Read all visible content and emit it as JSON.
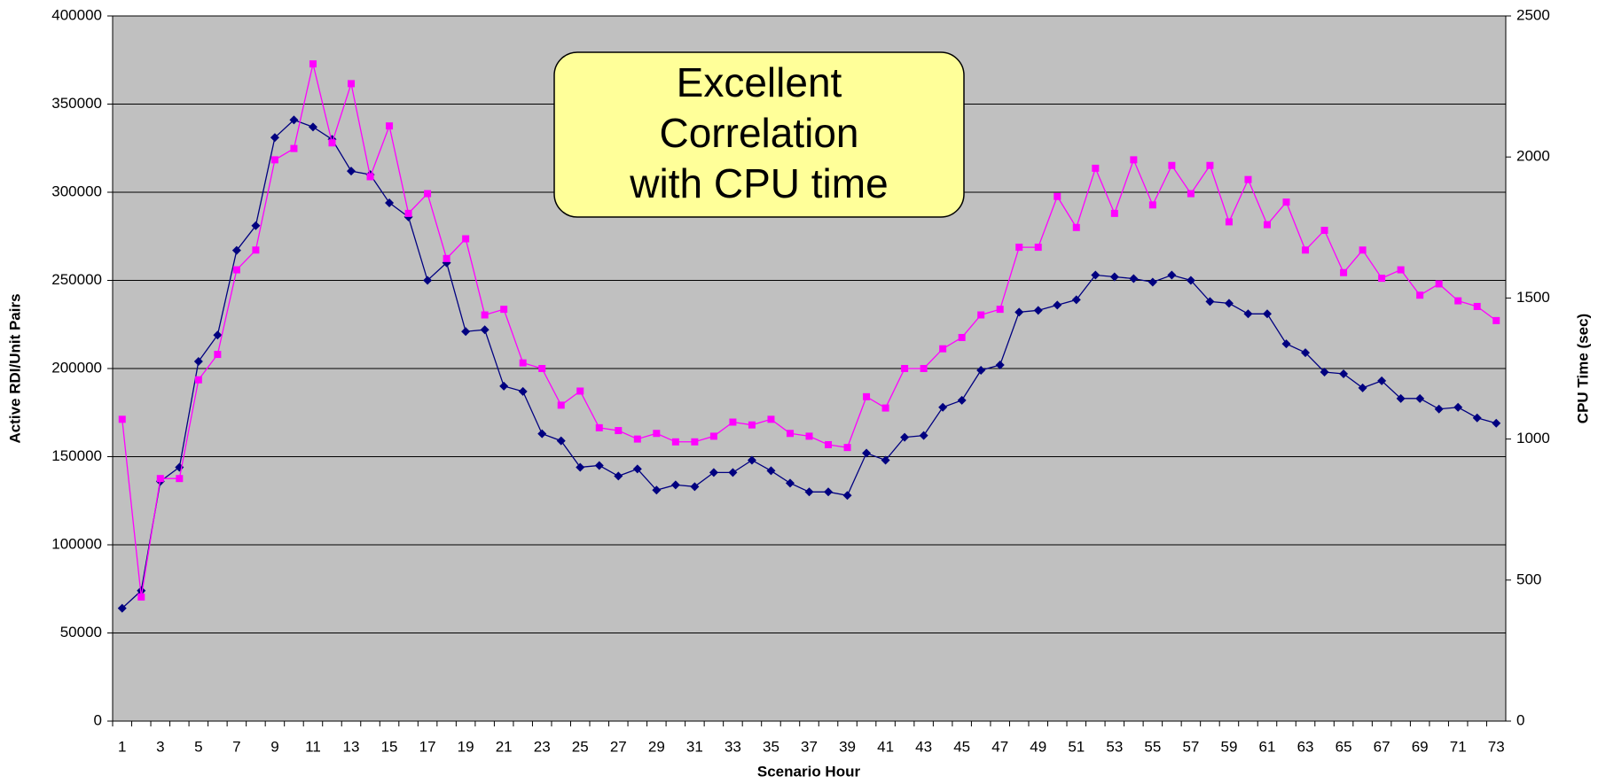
{
  "chart_data": {
    "type": "line",
    "annotation": [
      "Excellent",
      "Correlation",
      "with CPU time"
    ],
    "x_label": "Scenario Hour",
    "y_label": "Active RDI/Unit Pairs",
    "y2_label": "CPU Time (sec)",
    "categories": [
      1,
      null,
      3,
      null,
      5,
      null,
      7,
      null,
      9,
      null,
      11,
      null,
      13,
      null,
      15,
      null,
      17,
      null,
      19,
      null,
      21,
      null,
      23,
      null,
      25,
      null,
      27,
      null,
      29,
      null,
      31,
      null,
      33,
      null,
      35,
      null,
      37,
      null,
      39,
      null,
      41,
      null,
      43,
      null,
      45,
      null,
      47,
      null,
      49,
      null,
      51,
      null,
      53,
      null,
      55,
      null,
      57,
      null,
      59,
      null,
      61,
      null,
      63,
      null,
      65,
      null,
      67,
      null,
      69,
      null,
      71,
      null,
      73
    ],
    "series": [
      {
        "color": "#000080",
        "marker": "diamond",
        "values": [
          64000,
          74000,
          136000,
          144000,
          204000,
          219000,
          267000,
          281000,
          331000,
          341000,
          337000,
          330000,
          312000,
          310000,
          294000,
          286000,
          250000,
          260000,
          221000,
          222000,
          190000,
          187000,
          163000,
          159000,
          144000,
          145000,
          139000,
          143000,
          131000,
          134000,
          133000,
          141000,
          141000,
          148000,
          142000,
          135000,
          130000,
          130000,
          128000,
          152000,
          148000,
          161000,
          162000,
          178000,
          182000,
          199000,
          202000,
          232000,
          233000,
          236000,
          239000,
          253000,
          252000,
          251000,
          249000,
          253000,
          250000,
          238000,
          237000,
          231000,
          231000,
          214000,
          209000,
          198000,
          197000,
          189000,
          193000,
          183000,
          183000,
          177000,
          178000,
          172000,
          169000
        ]
      },
      {
        "color": "#ff00ff",
        "marker": "square",
        "axis": "y2",
        "values": [
          1070,
          440,
          860,
          860,
          1210,
          1300,
          1600,
          1670,
          1990,
          2030,
          2330,
          2050,
          2260,
          1930,
          2110,
          1800,
          1870,
          1640,
          1710,
          1440,
          1460,
          1270,
          1250,
          1120,
          1170,
          1040,
          1030,
          1000,
          1020,
          990,
          990,
          1010,
          1060,
          1050,
          1070,
          1020,
          1010,
          980,
          970,
          1150,
          1110,
          1250,
          1250,
          1320,
          1360,
          1440,
          1460,
          1680,
          1680,
          1860,
          1750,
          1960,
          1800,
          1990,
          1830,
          1970,
          1870,
          1970,
          1770,
          1920,
          1760,
          1840,
          1670,
          1740,
          1590,
          1670,
          1570,
          1600,
          1510,
          1550,
          1490,
          1470,
          1420
        ]
      }
    ],
    "ylim": [
      0,
      400000
    ],
    "yticks": [
      0,
      50000,
      100000,
      150000,
      200000,
      250000,
      300000,
      350000,
      400000
    ],
    "y2lim": [
      0,
      2500
    ],
    "y2ticks": [
      0,
      500,
      1000,
      1500,
      2000,
      2500
    ],
    "grid": true,
    "plot_background": "#c0c0c0"
  }
}
